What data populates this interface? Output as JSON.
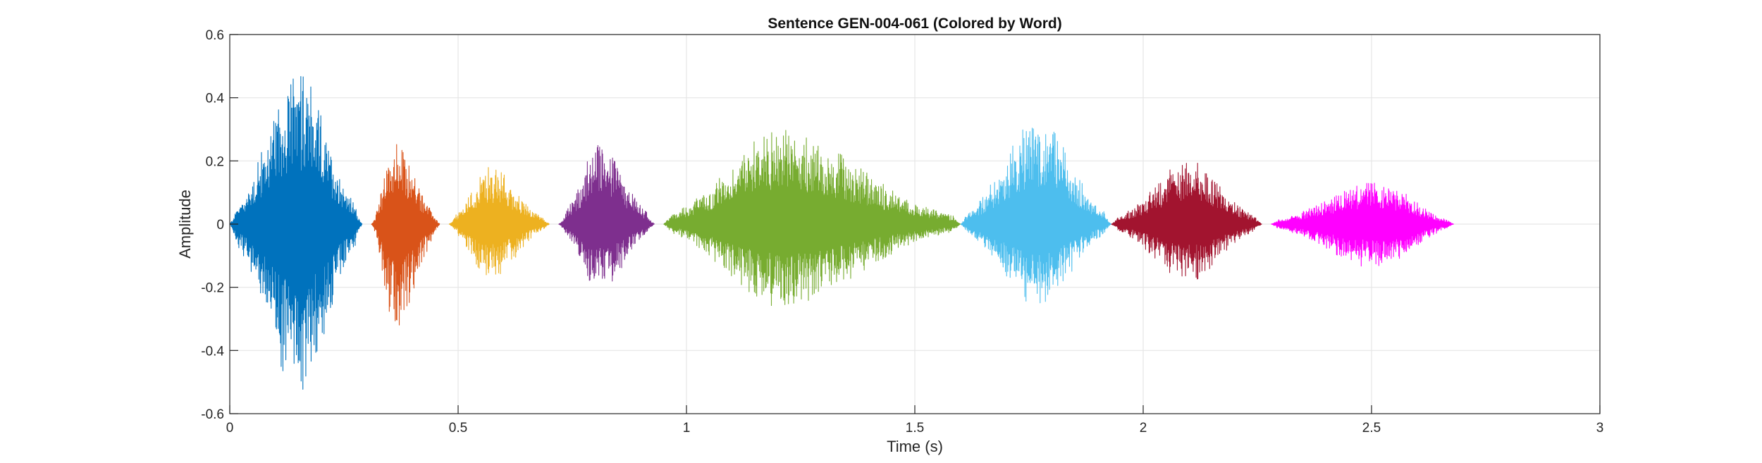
{
  "chart_data": {
    "type": "line",
    "title": "Sentence GEN-004-061 (Colored by Word)",
    "xlabel": "Time (s)",
    "ylabel": "Amplitude",
    "xlim": [
      0,
      3
    ],
    "ylim": [
      -0.6,
      0.6
    ],
    "xticks": [
      0,
      0.5,
      1,
      1.5,
      2,
      2.5,
      3
    ],
    "xtick_labels": [
      "0",
      "0.5",
      "1",
      "1.5",
      "2",
      "2.5",
      "3"
    ],
    "yticks": [
      -0.6,
      -0.4,
      -0.2,
      0,
      0.2,
      0.4,
      0.6
    ],
    "ytick_labels": [
      "-0.6",
      "-0.4",
      "-0.2",
      "0",
      "0.2",
      "0.4",
      "0.6"
    ],
    "grid": true,
    "series": [
      {
        "color": "#0072BD",
        "x_start": 0.0,
        "x_end": 0.29,
        "peak_time": 0.15,
        "max_amplitude": 0.48,
        "min_amplitude": -0.53
      },
      {
        "color": "#D95319",
        "x_start": 0.31,
        "x_end": 0.46,
        "peak_time": 0.36,
        "max_amplitude": 0.26,
        "min_amplitude": -0.33
      },
      {
        "color": "#EDB120",
        "x_start": 0.48,
        "x_end": 0.7,
        "peak_time": 0.57,
        "max_amplitude": 0.18,
        "min_amplitude": -0.17
      },
      {
        "color": "#7E2F8E",
        "x_start": 0.72,
        "x_end": 0.93,
        "peak_time": 0.81,
        "max_amplitude": 0.25,
        "min_amplitude": -0.21
      },
      {
        "color": "#77AC30",
        "x_start": 0.95,
        "x_end": 1.6,
        "peak_time": 1.2,
        "max_amplitude": 0.3,
        "min_amplitude": -0.26
      },
      {
        "color": "#4DBEEE",
        "x_start": 1.6,
        "x_end": 1.93,
        "peak_time": 1.77,
        "max_amplitude": 0.33,
        "min_amplitude": -0.26
      },
      {
        "color": "#A2142F",
        "x_start": 1.93,
        "x_end": 2.26,
        "peak_time": 2.1,
        "max_amplitude": 0.2,
        "min_amplitude": -0.18
      },
      {
        "color": "#FF00FF",
        "x_start": 2.28,
        "x_end": 2.68,
        "peak_time": 2.51,
        "max_amplitude": 0.14,
        "min_amplitude": -0.14
      }
    ]
  }
}
